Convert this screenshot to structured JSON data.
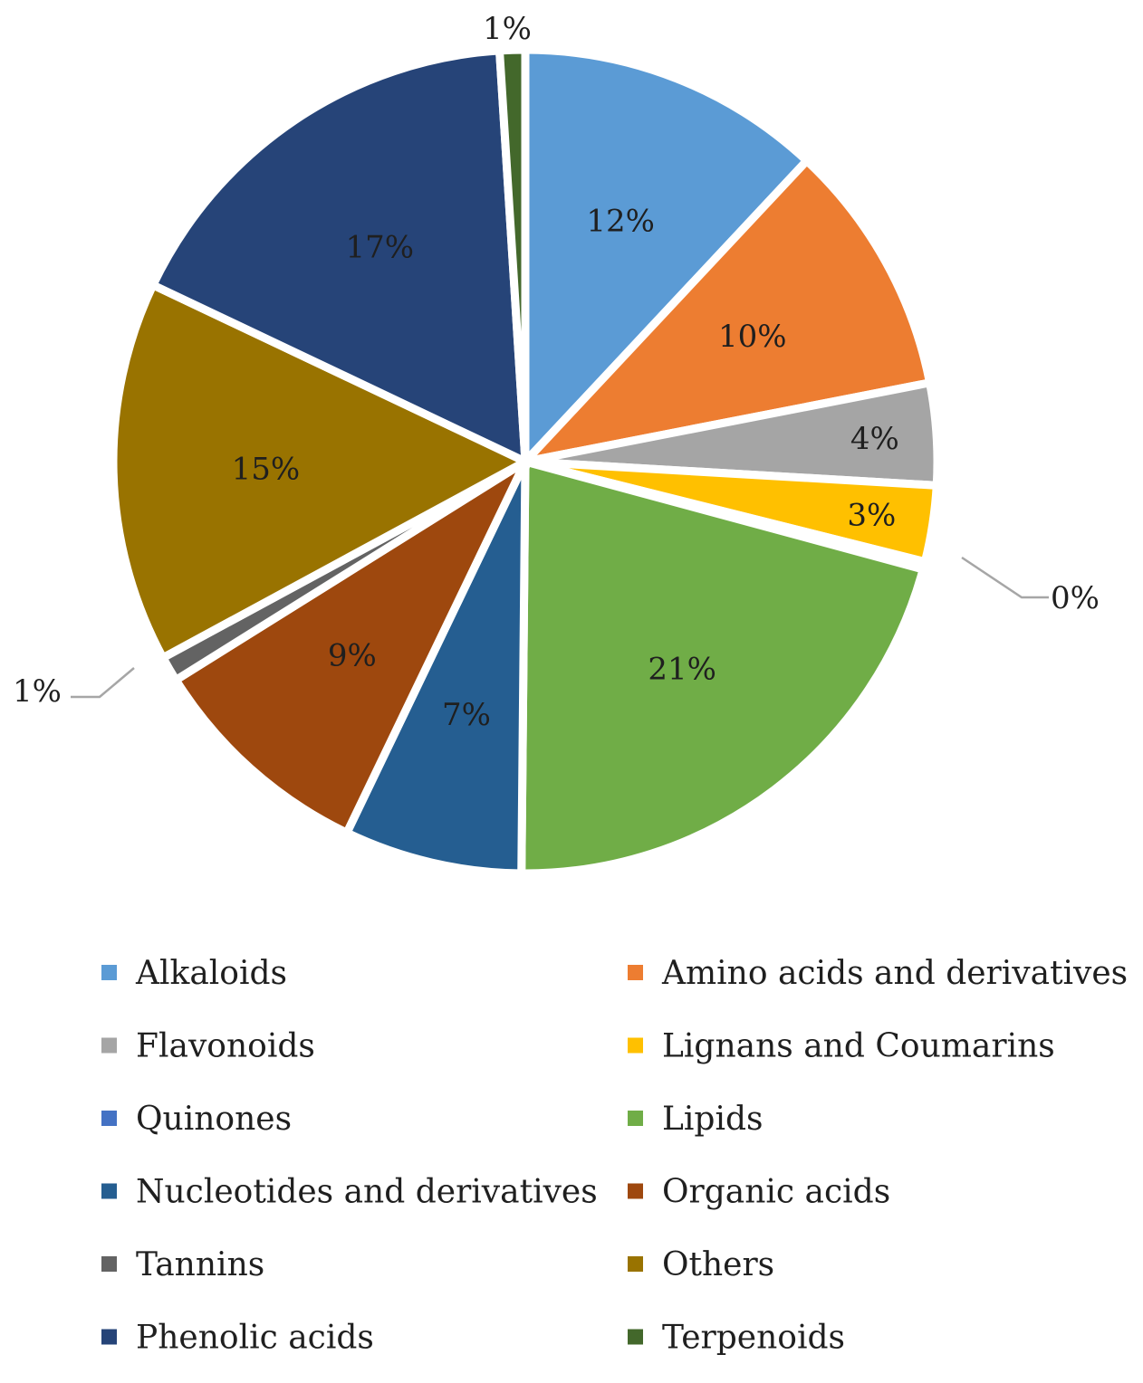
{
  "chart_data": {
    "type": "pie",
    "title": "",
    "slices": [
      {
        "name": "Alkaloids",
        "value": 12,
        "label": "12%",
        "color": "#5b9bd5"
      },
      {
        "name": "Amino acids and derivatives",
        "value": 10,
        "label": "10%",
        "color": "#ed7d31"
      },
      {
        "name": "Flavonoids",
        "value": 4,
        "label": "4%",
        "color": "#a5a5a5"
      },
      {
        "name": "Lignans and Coumarins",
        "value": 3,
        "label": "3%",
        "color": "#ffc000"
      },
      {
        "name": "Quinones",
        "value": 0,
        "label": "0%",
        "color": "#4472c4"
      },
      {
        "name": "Lipids",
        "value": 21,
        "label": "21%",
        "color": "#70ad47"
      },
      {
        "name": "Nucleotides and derivatives",
        "value": 7,
        "label": "7%",
        "color": "#255e91"
      },
      {
        "name": "Organic acids",
        "value": 9,
        "label": "9%",
        "color": "#9e480e"
      },
      {
        "name": "Tannins",
        "value": 1,
        "label": "1%",
        "color": "#636363"
      },
      {
        "name": "Others",
        "value": 15,
        "label": "15%",
        "color": "#997300"
      },
      {
        "name": "Phenolic acids",
        "value": 17,
        "label": "17%",
        "color": "#264478"
      },
      {
        "name": "Terpenoids",
        "value": 1,
        "label": "1%",
        "color": "#43682b"
      }
    ],
    "legend_position": "bottom",
    "legend_columns": 2
  }
}
